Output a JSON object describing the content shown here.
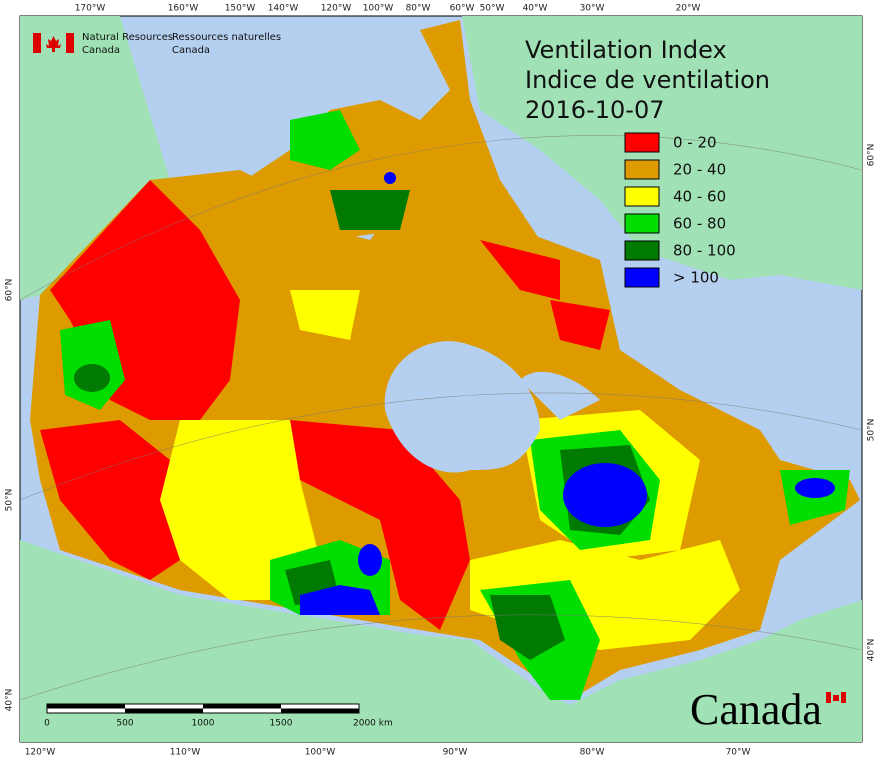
{
  "header": {
    "org_en": [
      "Natural Resources",
      "Canada"
    ],
    "org_fr": [
      "Ressources naturelles",
      "Canada"
    ]
  },
  "title": {
    "lines": [
      "Ventilation Index",
      "Indice de ventilation",
      "2016-10-07"
    ]
  },
  "legend": [
    {
      "label": "0 - 20",
      "color": "#ff0000"
    },
    {
      "label": "20 - 40",
      "color": "#dd9b00"
    },
    {
      "label": "40 - 60",
      "color": "#ffff00"
    },
    {
      "label": "60 - 80",
      "color": "#00dd00"
    },
    {
      "label": "80 - 100",
      "color": "#007a00"
    },
    {
      "label": "> 100",
      "color": "#0000ff"
    }
  ],
  "graticule": {
    "top": [
      "170°W",
      "160°W",
      "150°W",
      "140°W",
      "120°W",
      "100°W",
      "80°W",
      "60°W",
      "50°W",
      "40°W",
      "30°W",
      "20°W"
    ],
    "bottom": [
      "120°W",
      "110°W",
      "100°W",
      "90°W",
      "80°W",
      "70°W"
    ],
    "left": [
      "60°N",
      "50°N",
      "40°N"
    ],
    "right": [
      "60°N",
      "50°N",
      "40°N"
    ]
  },
  "scale_bar": {
    "labels": [
      "0",
      "500",
      "1000",
      "1500",
      "2000 km"
    ]
  },
  "wordmark": "Canada"
}
